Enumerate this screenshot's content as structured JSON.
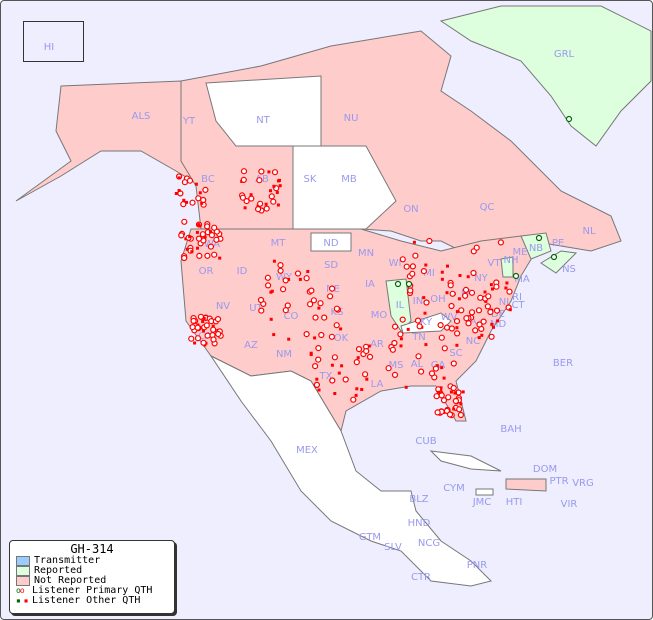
{
  "legend": {
    "title": "GH-314",
    "items": [
      {
        "label": "Transmitter",
        "color": "#99ccff"
      },
      {
        "label": "Reported",
        "color": "#ddffdd"
      },
      {
        "label": "Not Reported",
        "color": "#ffcccc"
      },
      {
        "label": "Listener Primary QTH",
        "marker": "open-circle",
        "colors": [
          "#006600",
          "#ff0000"
        ]
      },
      {
        "label": "Listener Other QTH",
        "marker": "small-square",
        "colors": [
          "#006600",
          "#ff0000"
        ]
      }
    ]
  },
  "colors": {
    "background": "#eeeeff",
    "not_reported": "#ffcccc",
    "reported": "#ddffdd",
    "unlisted": "#ffffff",
    "border": "#777777",
    "label": "#9999ee",
    "listener": "#ff0000",
    "listener_reported": "#006600"
  },
  "regions": {
    "reported": [
      "GRL",
      "IL",
      "NB",
      "NS",
      "VT",
      "NH"
    ],
    "unlisted_shown": [
      "NT",
      "SK",
      "MB",
      "ND",
      "KY",
      "MEX",
      "BLZ",
      "GTM",
      "HND",
      "SLV",
      "NCG",
      "CTR",
      "PNR",
      "CUB",
      "BAH",
      "JMC",
      "HTI",
      "CYM",
      "BER",
      "PTR",
      "VRG",
      "VIR"
    ]
  },
  "labels": [
    "HI",
    "ALS",
    "YT",
    "NT",
    "NU",
    "GRL",
    "BC",
    "AB",
    "SK",
    "MB",
    "ON",
    "QC",
    "NL",
    "NB",
    "PE",
    "NS",
    "WA",
    "OR",
    "ID",
    "MT",
    "WY",
    "ND",
    "SD",
    "NE",
    "MN",
    "IA",
    "WI",
    "MI",
    "IL",
    "IN",
    "OH",
    "PA",
    "NY",
    "VT",
    "NH",
    "ME",
    "MA",
    "CT",
    "RI",
    "NJ",
    "DE",
    "MD",
    "WV",
    "VA",
    "KY",
    "TN",
    "NC",
    "SC",
    "GA",
    "AL",
    "MS",
    "LA",
    "AR",
    "MO",
    "KS",
    "OK",
    "TX",
    "NM",
    "AZ",
    "CO",
    "UT",
    "NV",
    "CA",
    "BER",
    "BAH",
    "CUB",
    "MEX",
    "DOM",
    "PTR",
    "VRG",
    "CYM",
    "JMC",
    "HTI",
    "VIR",
    "BLZ",
    "HND",
    "GTM",
    "SLV",
    "NCG",
    "CTR",
    "PNR"
  ]
}
